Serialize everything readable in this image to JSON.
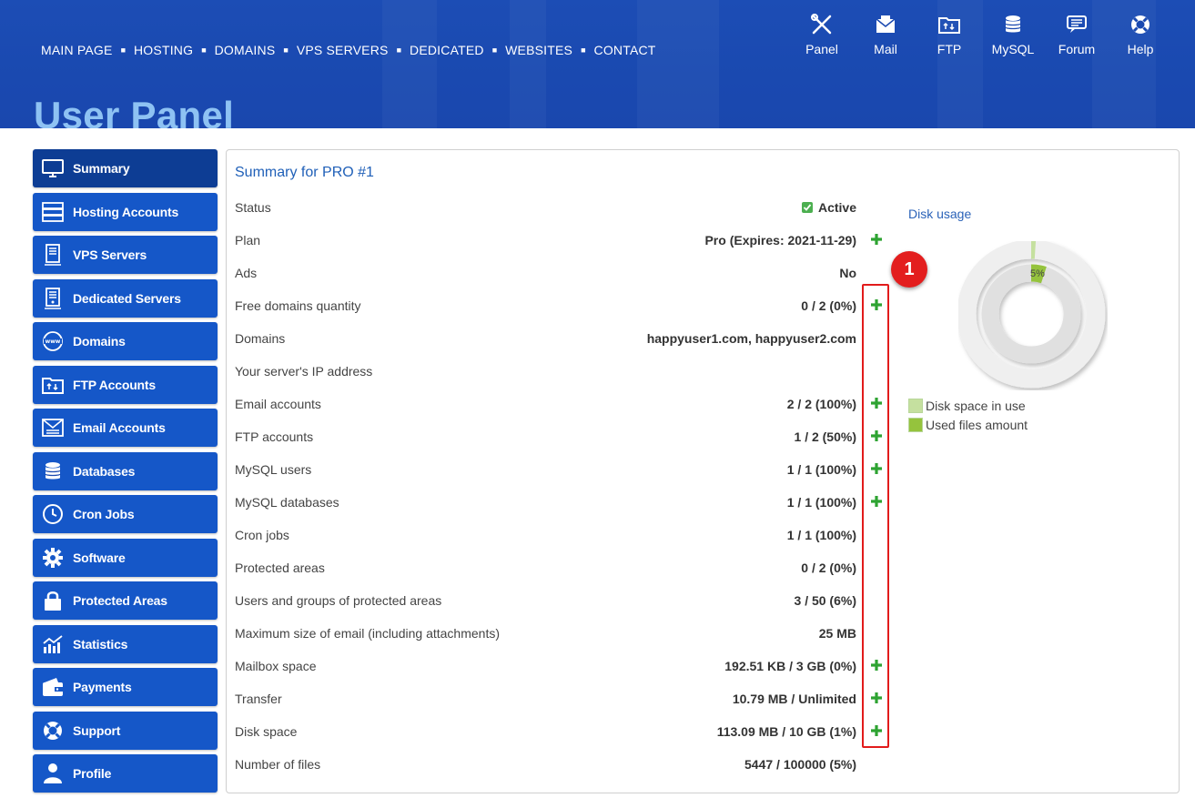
{
  "colors": {
    "header_bg": "#1a49b0",
    "sidebar_bg": "#1557c8",
    "sidebar_active": "#0d3d94",
    "title": "#8ec2f3",
    "plus": "#2ea332",
    "highlight": "#e21b1b"
  },
  "topnav": [
    "MAIN PAGE",
    "HOSTING",
    "DOMAINS",
    "VPS SERVERS",
    "DEDICATED",
    "WEBSITES",
    "CONTACT"
  ],
  "quick": [
    {
      "label": "Panel",
      "icon": "tools-icon"
    },
    {
      "label": "Mail",
      "icon": "mail-icon"
    },
    {
      "label": "FTP",
      "icon": "ftp-folder-icon"
    },
    {
      "label": "MySQL",
      "icon": "database-icon"
    },
    {
      "label": "Forum",
      "icon": "forum-icon"
    },
    {
      "label": "Help",
      "icon": "lifebuoy-icon"
    }
  ],
  "page_title": "User Panel",
  "sidebar": [
    {
      "label": "Summary",
      "icon": "monitor-icon",
      "active": true
    },
    {
      "label": "Hosting Accounts",
      "icon": "server-icon"
    },
    {
      "label": "VPS Servers",
      "icon": "vps-icon"
    },
    {
      "label": "Dedicated Servers",
      "icon": "dedicated-server-icon"
    },
    {
      "label": "Domains",
      "icon": "globe-www-icon"
    },
    {
      "label": "FTP Accounts",
      "icon": "ftp-folder-icon"
    },
    {
      "label": "Email Accounts",
      "icon": "email-icon"
    },
    {
      "label": "Databases",
      "icon": "database-icon"
    },
    {
      "label": "Cron Jobs",
      "icon": "clock-icon"
    },
    {
      "label": "Software",
      "icon": "gear-icon"
    },
    {
      "label": "Protected Areas",
      "icon": "lock-icon"
    },
    {
      "label": "Statistics",
      "icon": "chart-icon"
    },
    {
      "label": "Payments",
      "icon": "wallet-icon"
    },
    {
      "label": "Support",
      "icon": "lifebuoy-icon"
    },
    {
      "label": "Profile",
      "icon": "user-icon"
    }
  ],
  "summary": {
    "title": "Summary for PRO #1",
    "rows": [
      {
        "label": "Status",
        "value": "Active",
        "status": true,
        "plus": false
      },
      {
        "label": "Plan",
        "value": "Pro (Expires: 2021-11-29)",
        "plus": true
      },
      {
        "label": "Ads",
        "value": "No",
        "plus": false
      },
      {
        "label": "Free domains quantity",
        "value": "0 / 2 (0%)",
        "plus": true
      },
      {
        "label": "Domains",
        "value": "happyuser1.com, happyuser2.com",
        "plus": false
      },
      {
        "label": "Your server's IP address",
        "value": "",
        "plus": false
      },
      {
        "label": "Email accounts",
        "value": "2 / 2 (100%)",
        "plus": true
      },
      {
        "label": "FTP accounts",
        "value": "1 / 2 (50%)",
        "plus": true
      },
      {
        "label": "MySQL users",
        "value": "1 / 1 (100%)",
        "plus": true
      },
      {
        "label": "MySQL databases",
        "value": "1 / 1 (100%)",
        "plus": true
      },
      {
        "label": "Cron jobs",
        "value": "1 / 1 (100%)",
        "plus": false
      },
      {
        "label": "Protected areas",
        "value": "0 / 2 (0%)",
        "plus": false
      },
      {
        "label": "Users and groups of protected areas",
        "value": "3 / 50 (6%)",
        "plus": false
      },
      {
        "label": "Maximum size of email (including attachments)",
        "value": "25 MB",
        "plus": false
      },
      {
        "label": "Mailbox space",
        "value": "192.51 KB / 3 GB (0%)",
        "plus": true
      },
      {
        "label": "Transfer",
        "value": "10.79 MB / Unlimited",
        "plus": true
      },
      {
        "label": "Disk space",
        "value": "113.09 MB / 10 GB (1%)",
        "plus": true
      },
      {
        "label": "Number of files",
        "value": "5447 / 100000 (5%)",
        "plus": false
      }
    ]
  },
  "disk": {
    "title": "Disk usage",
    "outer_percent": 1,
    "inner_percent": 5,
    "inner_label": "5%",
    "legend": [
      {
        "label": "Disk space in use",
        "color": "#c5e09f"
      },
      {
        "label": "Used files amount",
        "color": "#95c33d"
      }
    ]
  },
  "annotation": {
    "badge": "1"
  }
}
